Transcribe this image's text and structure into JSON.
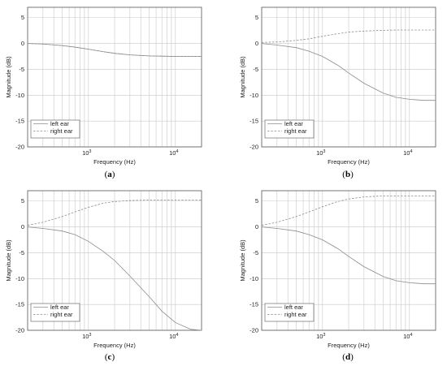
{
  "chart_data": [
    {
      "type": "line",
      "panel_label": "a",
      "xlabel": "Frequency (Hz)",
      "ylabel": "Magnitude (dB)",
      "xscale": "log",
      "xlim": [
        200,
        20000
      ],
      "ylim": [
        -20,
        7
      ],
      "yticks": [
        5,
        0,
        -5,
        -10,
        -15,
        -20
      ],
      "grid": true,
      "legend_position": "bottom-left",
      "x": [
        200,
        300,
        500,
        700,
        1000,
        1500,
        2000,
        3000,
        5000,
        7000,
        10000,
        15000,
        20000
      ],
      "series": [
        {
          "name": "left ear",
          "style": "solid",
          "values": [
            0,
            -0.1,
            -0.4,
            -0.7,
            -1.1,
            -1.6,
            -1.9,
            -2.2,
            -2.4,
            -2.45,
            -2.5,
            -2.5,
            -2.5
          ]
        },
        {
          "name": "right ear",
          "style": "dashed",
          "values": [
            0,
            -0.1,
            -0.4,
            -0.7,
            -1.1,
            -1.6,
            -1.9,
            -2.2,
            -2.4,
            -2.45,
            -2.5,
            -2.5,
            -2.5
          ]
        }
      ]
    },
    {
      "type": "line",
      "panel_label": "b",
      "xlabel": "Frequency (Hz)",
      "ylabel": "Magnitude (dB)",
      "xscale": "log",
      "xlim": [
        200,
        20000
      ],
      "ylim": [
        -20,
        7
      ],
      "yticks": [
        5,
        0,
        -5,
        -10,
        -15,
        -20
      ],
      "grid": true,
      "legend_position": "bottom-left",
      "x": [
        200,
        300,
        500,
        700,
        1000,
        1500,
        2000,
        3000,
        5000,
        7000,
        10000,
        15000,
        20000
      ],
      "series": [
        {
          "name": "left ear",
          "style": "solid",
          "values": [
            0,
            -0.3,
            -0.8,
            -1.5,
            -2.5,
            -4.2,
            -5.7,
            -7.7,
            -9.6,
            -10.4,
            -10.8,
            -11,
            -11
          ]
        },
        {
          "name": "right ear",
          "style": "dashed",
          "values": [
            0.2,
            0.3,
            0.6,
            0.9,
            1.4,
            1.9,
            2.2,
            2.4,
            2.55,
            2.6,
            2.6,
            2.6,
            2.6
          ]
        }
      ]
    },
    {
      "type": "line",
      "panel_label": "c",
      "xlabel": "Frequency (Hz)",
      "ylabel": "Magnitude (dB)",
      "xscale": "log",
      "xlim": [
        200,
        20000
      ],
      "ylim": [
        -20,
        7
      ],
      "yticks": [
        5,
        0,
        -5,
        -10,
        -15,
        -20
      ],
      "grid": true,
      "legend_position": "bottom-left",
      "x": [
        200,
        300,
        500,
        700,
        1000,
        1500,
        2000,
        3000,
        5000,
        7000,
        10000,
        15000,
        20000
      ],
      "series": [
        {
          "name": "left ear",
          "style": "solid",
          "values": [
            0,
            -0.3,
            -0.8,
            -1.5,
            -2.8,
            -4.8,
            -6.5,
            -9.5,
            -13.5,
            -16.3,
            -18.5,
            -19.8,
            -20
          ]
        },
        {
          "name": "right ear",
          "style": "dashed",
          "values": [
            0.3,
            0.9,
            2.0,
            2.9,
            3.8,
            4.6,
            4.9,
            5.1,
            5.2,
            5.2,
            5.2,
            5.2,
            5.2
          ]
        }
      ]
    },
    {
      "type": "line",
      "panel_label": "d",
      "xlabel": "Frequency (Hz)",
      "ylabel": "Magnitude (dB)",
      "xscale": "log",
      "xlim": [
        200,
        20000
      ],
      "ylim": [
        -20,
        7
      ],
      "yticks": [
        5,
        0,
        -5,
        -10,
        -15,
        -20
      ],
      "grid": true,
      "legend_position": "bottom-left",
      "x": [
        200,
        300,
        500,
        700,
        1000,
        1500,
        2000,
        3000,
        5000,
        7000,
        10000,
        15000,
        20000
      ],
      "series": [
        {
          "name": "left ear",
          "style": "solid",
          "values": [
            0,
            -0.3,
            -0.8,
            -1.5,
            -2.5,
            -4.2,
            -5.7,
            -7.7,
            -9.6,
            -10.4,
            -10.8,
            -11,
            -11
          ]
        },
        {
          "name": "right ear",
          "style": "dashed",
          "values": [
            0.3,
            0.9,
            2.0,
            2.9,
            3.9,
            4.9,
            5.4,
            5.8,
            6.0,
            6.0,
            6.0,
            6.0,
            6.0
          ]
        }
      ]
    }
  ],
  "x_tick_labels": {
    "1000": "10^3",
    "10000": "10^4"
  },
  "colors": {
    "axis": "#555555",
    "grid": "#c8c8c8",
    "line": "#8c8c8c",
    "text": "#222222"
  }
}
